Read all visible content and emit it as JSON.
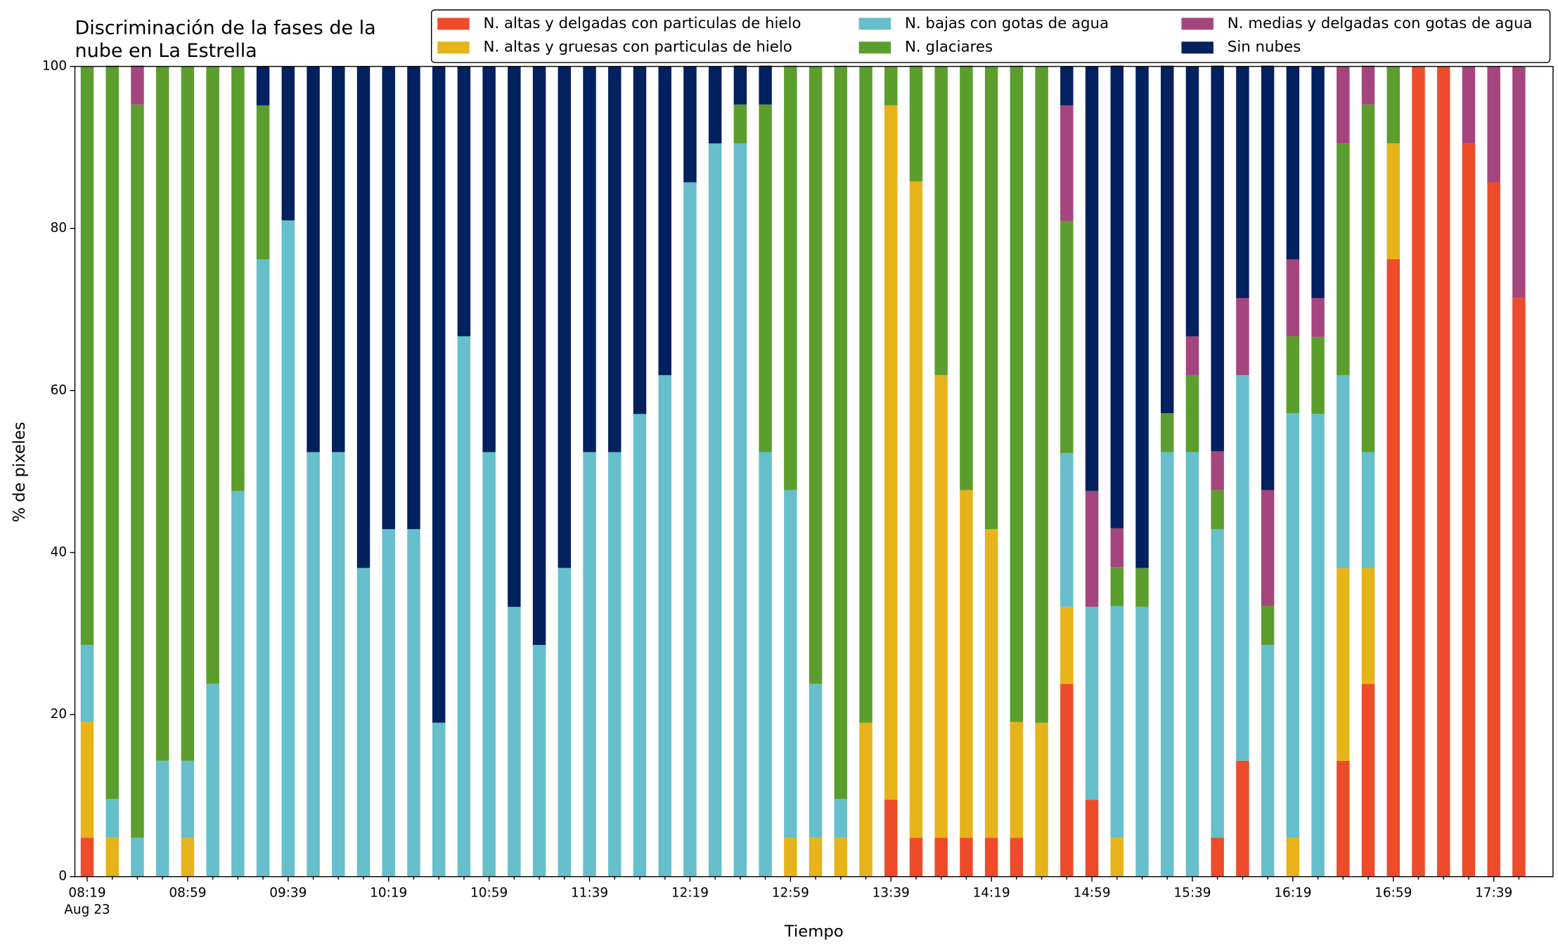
{
  "chart_data": {
    "type": "stacked_bar",
    "title": [
      "Discriminación de la fases de la",
      "nube en La Estrella"
    ],
    "x_label": "Tiempo",
    "y_label": "% de pixeles",
    "date_label": "Aug 23",
    "categories": [
      "08:19",
      null,
      null,
      null,
      "08:59",
      null,
      null,
      null,
      "09:39",
      null,
      null,
      null,
      "10:19",
      null,
      null,
      null,
      "10:59",
      null,
      null,
      null,
      "11:39",
      null,
      null,
      null,
      "12:19",
      null,
      null,
      null,
      "12:59",
      null,
      null,
      null,
      "13:39",
      null,
      null,
      null,
      "14:19",
      null,
      null,
      null,
      "14:59",
      null,
      null,
      null,
      "15:39",
      null,
      null,
      null,
      "16:19",
      null,
      null,
      null,
      "16:59",
      null,
      null,
      null,
      "17:39",
      null
    ],
    "ylim": [
      0,
      100
    ],
    "yticks": [
      0,
      20,
      40,
      60,
      80,
      100
    ],
    "legend": "top-right",
    "series": [
      {
        "name": "N. altas y delgadas con particulas de hielo",
        "color": "#ee4b2b",
        "values": [
          4.8,
          0,
          0,
          0,
          0,
          0,
          0,
          0,
          0,
          0,
          0,
          0,
          0,
          0,
          0,
          0,
          0,
          0,
          0,
          0,
          0,
          0,
          0,
          0,
          0,
          0,
          0,
          0,
          0,
          0,
          0,
          0,
          9.5,
          4.8,
          4.8,
          4.8,
          4.8,
          4.8,
          0,
          23.8,
          9.5,
          0,
          0,
          0,
          0,
          4.8,
          14.3,
          0,
          0,
          0,
          14.3,
          23.8,
          76.2,
          100,
          100,
          90.5,
          85.7,
          71.4
        ]
      },
      {
        "name": "N. altas y gruesas con particulas de hielo",
        "color": "#e6b41a",
        "values": [
          14.3,
          4.8,
          0,
          0,
          4.8,
          0,
          0,
          0,
          0,
          0,
          0,
          0,
          0,
          0,
          0,
          0,
          0,
          0,
          0,
          0,
          0,
          0,
          0,
          0,
          0,
          0,
          0,
          0,
          4.8,
          4.8,
          4.8,
          19,
          85.7,
          81,
          57.1,
          42.9,
          38.1,
          14.3,
          19,
          9.5,
          0,
          4.8,
          0,
          0,
          0,
          0,
          0,
          0,
          4.8,
          0,
          23.8,
          14.3,
          14.3,
          0,
          0,
          0,
          0,
          0
        ]
      },
      {
        "name": "N. bajas con gotas de agua",
        "color": "#66bfca",
        "values": [
          9.5,
          4.8,
          4.8,
          14.3,
          9.5,
          23.8,
          47.6,
          76.2,
          81,
          52.4,
          52.4,
          38.1,
          42.9,
          42.9,
          19,
          66.7,
          52.4,
          33.3,
          28.6,
          38.1,
          52.4,
          52.4,
          57.1,
          61.9,
          85.7,
          90.5,
          90.5,
          52.4,
          42.9,
          19,
          4.8,
          0,
          0,
          0,
          0,
          0,
          0,
          0,
          0,
          19,
          23.8,
          28.6,
          33.3,
          52.4,
          52.4,
          38.1,
          47.6,
          28.6,
          52.4,
          57.1,
          23.8,
          14.3,
          0,
          0,
          0,
          0,
          0,
          0
        ]
      },
      {
        "name": "N. glaciares",
        "color": "#5c9e2d",
        "values": [
          71.4,
          90.5,
          90.5,
          85.7,
          85.7,
          76.2,
          52.4,
          19,
          0,
          0,
          0,
          0,
          0,
          0,
          0,
          0,
          0,
          0,
          0,
          0,
          0,
          0,
          0,
          0,
          0,
          0,
          4.8,
          42.9,
          52.4,
          76.2,
          90.5,
          81,
          4.8,
          14.3,
          38.1,
          52.4,
          57.1,
          81,
          81,
          28.6,
          0,
          4.8,
          4.8,
          4.8,
          9.5,
          4.8,
          0,
          4.8,
          9.5,
          9.5,
          28.6,
          42.9,
          9.5,
          0,
          0,
          0,
          0,
          0
        ]
      },
      {
        "name": "N. medias y delgadas con gotas de agua",
        "color": "#a4467d",
        "values": [
          0,
          0,
          4.8,
          0,
          0,
          0,
          0,
          0,
          0,
          0,
          0,
          0,
          0,
          0,
          0,
          0,
          0,
          0,
          0,
          0,
          0,
          0,
          0,
          0,
          0,
          0,
          0,
          0,
          0,
          0,
          0,
          0,
          0,
          0,
          0,
          0,
          0,
          0,
          0,
          14.3,
          14.3,
          4.8,
          0,
          0,
          4.8,
          4.8,
          9.5,
          14.3,
          9.5,
          4.8,
          9.5,
          4.8,
          0,
          0,
          0,
          9.5,
          14.3,
          28.6
        ]
      },
      {
        "name": "Sin nubes",
        "color": "#03205f",
        "values": [
          0,
          0,
          0,
          0,
          0,
          0,
          0,
          4.8,
          19,
          47.6,
          47.6,
          61.9,
          57.1,
          57.1,
          81,
          33.3,
          47.6,
          66.7,
          71.4,
          61.9,
          47.6,
          47.6,
          42.9,
          38.1,
          14.3,
          9.5,
          4.8,
          4.8,
          0,
          0,
          0,
          0,
          0,
          0,
          0,
          0,
          0,
          0,
          0,
          4.8,
          52.4,
          57.1,
          61.9,
          42.9,
          33.3,
          47.6,
          28.6,
          52.4,
          23.8,
          28.6,
          0,
          0,
          0,
          0,
          0,
          0,
          0,
          0
        ]
      }
    ]
  }
}
